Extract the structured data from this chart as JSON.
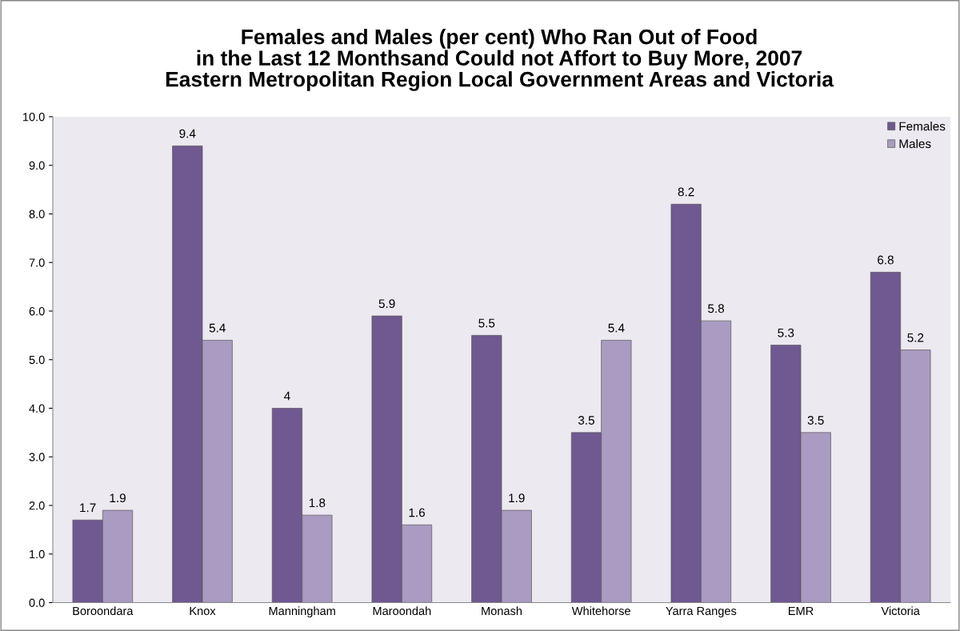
{
  "chart_data": {
    "type": "bar",
    "title": "Females and Males (per cent) Who Ran Out of Food\nin the Last 12 Monthsand Could not Affort to Buy More, 2007\nEastern Metropolitan Region Local Government Areas and Victoria",
    "categories": [
      "Boroondara",
      "Knox",
      "Manningham",
      "Maroondah",
      "Monash",
      "Whitehorse",
      "Yarra Ranges",
      "EMR",
      "Victoria"
    ],
    "series": [
      {
        "name": "Females",
        "color": "#705891",
        "values": [
          1.7,
          9.4,
          4,
          5.9,
          5.5,
          3.5,
          8.2,
          5.3,
          6.8
        ],
        "value_labels": [
          "1.7",
          "9.4",
          "4",
          "5.9",
          "5.5",
          "3.5",
          "8.2",
          "5.3",
          "6.8"
        ]
      },
      {
        "name": "Males",
        "color": "#a99bc1",
        "values": [
          1.9,
          5.4,
          1.8,
          1.6,
          1.9,
          5.4,
          5.8,
          3.5,
          5.2
        ],
        "value_labels": [
          "1.9",
          "5.4",
          "1.8",
          "1.6",
          "1.9",
          "5.4",
          "5.8",
          "3.5",
          "5.2"
        ]
      }
    ],
    "ylim": [
      0,
      10
    ],
    "yticks": [
      {
        "value": 0,
        "label": "0.0"
      },
      {
        "value": 1,
        "label": "1.0"
      },
      {
        "value": 2,
        "label": "2.0"
      },
      {
        "value": 3,
        "label": "3.0"
      },
      {
        "value": 4,
        "label": "4.0"
      },
      {
        "value": 5,
        "label": "5.0"
      },
      {
        "value": 6,
        "label": "6.0"
      },
      {
        "value": 7,
        "label": "7.0"
      },
      {
        "value": 8,
        "label": "8.0"
      },
      {
        "value": 9,
        "label": "9.0"
      },
      {
        "value": 10,
        "label": "10.0"
      }
    ],
    "grid": false,
    "legend": "top right"
  }
}
